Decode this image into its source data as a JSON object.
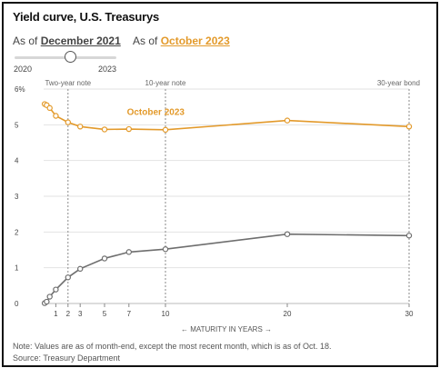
{
  "title": "Yield curve, U.S. Treasurys",
  "selector": {
    "left_prefix": "As of",
    "left_value": "December 2021",
    "right_prefix": "As of",
    "right_value": "October 2023",
    "slider_min_label": "2020",
    "slider_max_label": "2023",
    "slider_position": 0.55
  },
  "colors": {
    "october_2023": "#e39a2b",
    "december_2021": "#6e6e6e",
    "reference_line": "#8a8a8a",
    "grid": "#e2e2e2",
    "text": "#444444"
  },
  "chart_data": {
    "type": "line",
    "ylim": [
      0,
      6
    ],
    "xlim": [
      0,
      30
    ],
    "y_ticks": [
      {
        "value": 0,
        "label": "0"
      },
      {
        "value": 1,
        "label": "1"
      },
      {
        "value": 2,
        "label": "2"
      },
      {
        "value": 3,
        "label": "3"
      },
      {
        "value": 4,
        "label": "4"
      },
      {
        "value": 5,
        "label": "5"
      },
      {
        "value": 6,
        "label": "6%"
      }
    ],
    "x_ticks": [
      {
        "value": 1,
        "label": "1"
      },
      {
        "value": 2,
        "label": "2"
      },
      {
        "value": 3,
        "label": "3"
      },
      {
        "value": 5,
        "label": "5"
      },
      {
        "value": 7,
        "label": "7"
      },
      {
        "value": 10,
        "label": "10"
      },
      {
        "value": 20,
        "label": "20"
      },
      {
        "value": 30,
        "label": "30"
      }
    ],
    "xlabel": "← MATURITY IN YEARS →",
    "reference_lines": [
      {
        "x": 2,
        "label": "Two-year note"
      },
      {
        "x": 10,
        "label": "10-year note"
      },
      {
        "x": 30,
        "label": "30-year bond"
      }
    ],
    "series": [
      {
        "name": "October 2023",
        "color_key": "october_2023",
        "x": [
          0.0833,
          0.25,
          0.5,
          1,
          2,
          3,
          5,
          7,
          10,
          20,
          30
        ],
        "y": [
          5.58,
          5.55,
          5.47,
          5.25,
          5.07,
          4.95,
          4.87,
          4.88,
          4.86,
          5.12,
          4.95
        ]
      },
      {
        "name": "",
        "color_key": "december_2021",
        "x": [
          0.0833,
          0.25,
          0.5,
          1,
          2,
          3,
          5,
          7,
          10,
          20,
          30
        ],
        "y": [
          0.01,
          0.05,
          0.19,
          0.39,
          0.73,
          0.97,
          1.26,
          1.44,
          1.52,
          1.94,
          1.9
        ]
      }
    ],
    "series_label": {
      "text": "October 2023",
      "x": 9.2,
      "y": 5.28
    }
  },
  "footer": {
    "note": "Note: Values are as of month-end, except the most recent month, which is as of Oct. 18.",
    "source": "Source: Treasury Department"
  }
}
